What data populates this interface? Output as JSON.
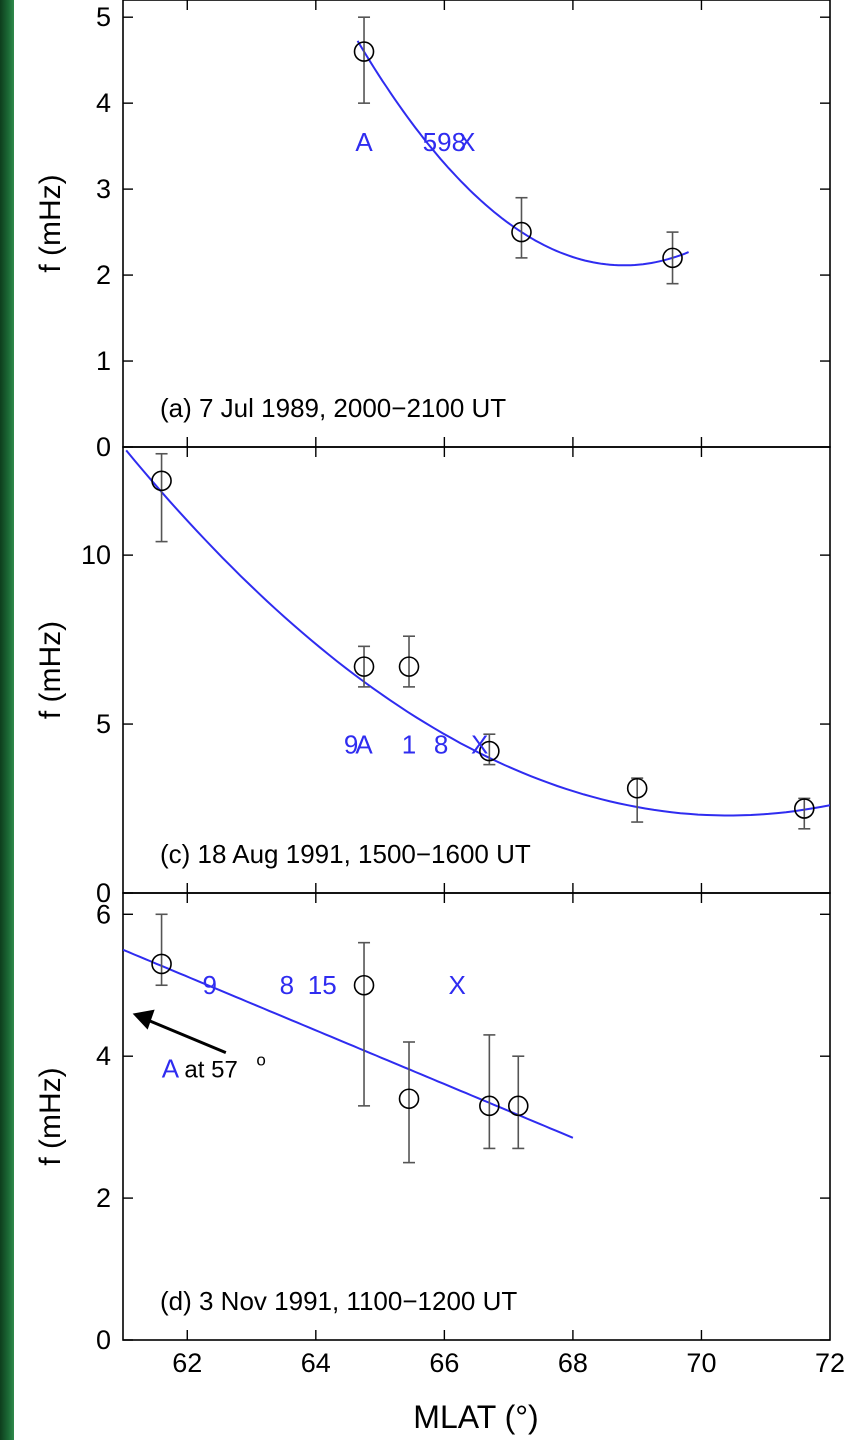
{
  "colors": {
    "fit": "#2f2cf0",
    "station": "#2f2cf0",
    "data": "#000000",
    "error": "#555555",
    "axis": "#000000",
    "background": "#ffffff",
    "left_strip": "#1c6a36"
  },
  "chart_data": [
    {
      "type": "scatter",
      "label": "(a) 7 Jul 1989, 2000−2100 UT",
      "ylabel": "f (mHz)",
      "xlim": [
        61,
        72
      ],
      "ylim": [
        0,
        5.2
      ],
      "yticks": [
        0,
        1,
        2,
        3,
        4,
        5
      ],
      "points": [
        {
          "x": 64.75,
          "y": 4.6,
          "err_low": 4.0,
          "err_high": 5.0
        },
        {
          "x": 67.2,
          "y": 2.5,
          "err_low": 2.2,
          "err_high": 2.9
        },
        {
          "x": 69.55,
          "y": 2.2,
          "err_low": 1.9,
          "err_high": 2.5
        }
      ],
      "fit": {
        "type": "quadratic",
        "x_range": [
          64.65,
          69.8
        ],
        "points": [
          [
            64.75,
            4.6
          ],
          [
            67.2,
            2.5
          ],
          [
            69.55,
            2.2
          ]
        ]
      },
      "station_labels": [
        {
          "text": "A",
          "x": 64.75,
          "y": 3.55
        },
        {
          "text": "598",
          "x": 66.0,
          "y": 3.55
        },
        {
          "text": "X",
          "x": 66.35,
          "y": 3.55
        }
      ]
    },
    {
      "type": "scatter",
      "label": "(c) 18 Aug 1991, 1500−1600 UT",
      "ylabel": "f (mHz)",
      "xlim": [
        61,
        72
      ],
      "ylim": [
        0,
        13.2
      ],
      "yticks": [
        0,
        5,
        10
      ],
      "points": [
        {
          "x": 61.6,
          "y": 12.2,
          "err_low": 10.4,
          "err_high": 13.0
        },
        {
          "x": 64.75,
          "y": 6.7,
          "err_low": 6.1,
          "err_high": 7.3
        },
        {
          "x": 65.45,
          "y": 6.7,
          "err_low": 6.1,
          "err_high": 7.6
        },
        {
          "x": 66.7,
          "y": 4.2,
          "err_low": 3.8,
          "err_high": 4.7
        },
        {
          "x": 69.0,
          "y": 3.1,
          "err_low": 2.1,
          "err_high": 3.4
        },
        {
          "x": 71.6,
          "y": 2.5,
          "err_low": 1.9,
          "err_high": 2.8
        }
      ],
      "fit": {
        "type": "quadratic",
        "x_range": [
          61.05,
          72
        ],
        "points": [
          [
            61.05,
            13.1
          ],
          [
            66.0,
            4.7
          ],
          [
            72.0,
            2.6
          ]
        ]
      },
      "station_labels": [
        {
          "text": "9",
          "x": 64.55,
          "y": 4.4
        },
        {
          "text": "A",
          "x": 64.75,
          "y": 4.4
        },
        {
          "text": "1",
          "x": 65.45,
          "y": 4.4
        },
        {
          "text": "8",
          "x": 65.95,
          "y": 4.4
        },
        {
          "text": "X",
          "x": 66.55,
          "y": 4.4
        }
      ]
    },
    {
      "type": "scatter",
      "label": "(d) 3 Nov 1991, 1100−1200 UT",
      "ylabel": "f (mHz)",
      "xlabel": "MLAT  (°)",
      "xlim": [
        61,
        72
      ],
      "ylim": [
        0,
        6.3
      ],
      "yticks": [
        0,
        2,
        4,
        6
      ],
      "xticks": [
        62,
        64,
        66,
        68,
        70,
        72
      ],
      "points": [
        {
          "x": 61.6,
          "y": 5.3,
          "err_low": 5.0,
          "err_high": 6.0
        },
        {
          "x": 64.75,
          "y": 5.0,
          "err_low": 3.3,
          "err_high": 5.6
        },
        {
          "x": 65.45,
          "y": 3.4,
          "err_low": 2.5,
          "err_high": 4.2
        },
        {
          "x": 66.7,
          "y": 3.3,
          "err_low": 2.7,
          "err_high": 4.3
        },
        {
          "x": 67.15,
          "y": 3.3,
          "err_low": 2.7,
          "err_high": 4.0
        }
      ],
      "fit": {
        "type": "linear",
        "x_range": [
          61,
          68
        ],
        "points": [
          [
            61.0,
            5.5
          ],
          [
            68.0,
            2.85
          ]
        ]
      },
      "station_labels": [
        {
          "text": "9",
          "x": 62.35,
          "y": 5.0
        },
        {
          "text": "8",
          "x": 63.55,
          "y": 5.0
        },
        {
          "text": "15",
          "x": 64.1,
          "y": 5.0
        },
        {
          "text": "X",
          "x": 66.2,
          "y": 5.0
        }
      ],
      "annotation": {
        "station": "A",
        "text": "at 57",
        "degree": "o",
        "arrow_tip": [
          61.15,
          4.6
        ],
        "arrow_tail": [
          62.6,
          4.05
        ],
        "text_pos": [
          61.8,
          3.7
        ]
      }
    }
  ]
}
